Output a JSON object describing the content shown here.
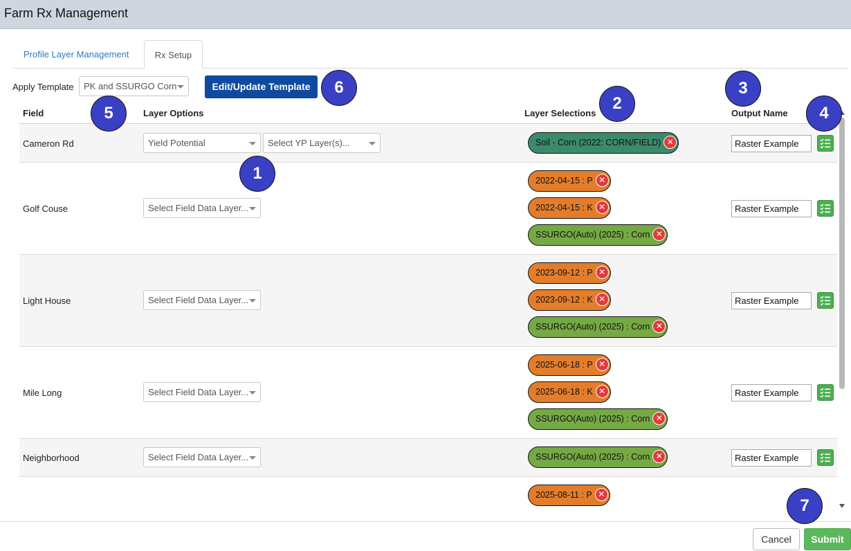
{
  "app": {
    "title": "Farm Rx Management"
  },
  "tabs": [
    {
      "label": "Profile Layer Management",
      "active": false
    },
    {
      "label": "Rx Setup",
      "active": true
    }
  ],
  "template": {
    "label": "Apply Template",
    "selected": "PK and SSURGO Corn",
    "edit_button": "Edit/Update Template"
  },
  "columns": {
    "field": "Field",
    "layer_options": "Layer Options",
    "layer_selections": "Layer Selections",
    "output_name": "Output Name"
  },
  "rows": [
    {
      "field": "Cameron Rd",
      "option1": "Yield Potential",
      "option2": "Select YP Layer(s)...",
      "chips": [
        {
          "label": "Soil - Corn (2022: CORN/FIELD)",
          "color": "teal"
        }
      ],
      "output": "Raster Example"
    },
    {
      "field": "Golf Couse",
      "option1": "Select Field Data Layer...",
      "chips": [
        {
          "label": "2022-04-15 : P",
          "color": "orange"
        },
        {
          "label": "2022-04-15 : K",
          "color": "orange"
        },
        {
          "label": "SSURGO(Auto) (2025) : Corn",
          "color": "green"
        }
      ],
      "output": "Raster Example"
    },
    {
      "field": "Light House",
      "option1": "Select Field Data Layer...",
      "chips": [
        {
          "label": "2023-09-12 : P",
          "color": "orange"
        },
        {
          "label": "2023-09-12 : K",
          "color": "orange"
        },
        {
          "label": "SSURGO(Auto) (2025) : Corn",
          "color": "green"
        }
      ],
      "output": "Raster Example"
    },
    {
      "field": "Mile Long",
      "option1": "Select Field Data Layer...",
      "chips": [
        {
          "label": "2025-06-18 : P",
          "color": "orange"
        },
        {
          "label": "2025-06-18 : K",
          "color": "orange"
        },
        {
          "label": "SSURGO(Auto) (2025) : Corn",
          "color": "green"
        }
      ],
      "output": "Raster Example"
    },
    {
      "field": "Neighborhood",
      "option1": "Select Field Data Layer...",
      "chips": [
        {
          "label": "SSURGO(Auto) (2025) : Corn",
          "color": "green"
        }
      ],
      "output": "Raster Example"
    },
    {
      "field": "",
      "chips": [
        {
          "label": "2025-08-11 : P",
          "color": "orange"
        }
      ]
    }
  ],
  "callouts": [
    "1",
    "2",
    "3",
    "4",
    "5",
    "6",
    "7"
  ],
  "footer": {
    "cancel": "Cancel",
    "submit": "Submit"
  },
  "colors": {
    "primary": "#0f4aa0",
    "submit": "#5cb85c",
    "chip_orange": "#e37d2b",
    "chip_green": "#75a944",
    "chip_teal": "#3b8a6c",
    "callout": "#3a40c4"
  }
}
